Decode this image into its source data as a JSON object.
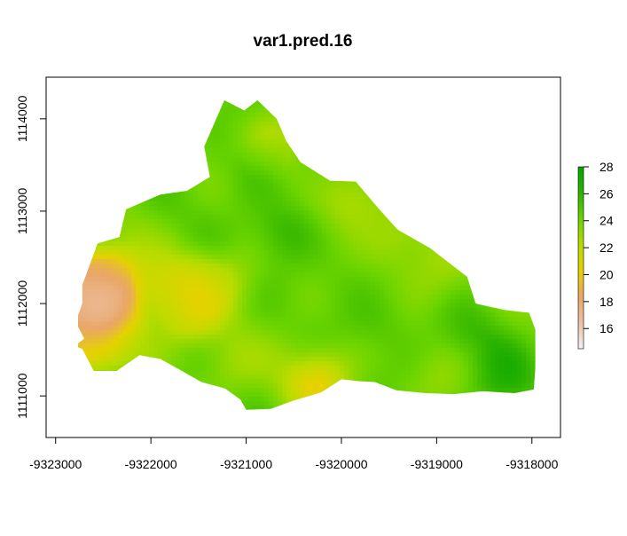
{
  "chart_data": {
    "type": "heatmap",
    "title": "var1.pred.16",
    "xlabel": "",
    "ylabel": "",
    "x_ticks": [
      -9323000,
      -9322000,
      -9321000,
      -9320000,
      -9319000,
      -9318000
    ],
    "y_ticks": [
      1111000,
      1112000,
      1113000,
      1114000
    ],
    "x_tick_labels": [
      "-9323000",
      "-9322000",
      "-9321000",
      "-9320000",
      "-9319000",
      "-9318000"
    ],
    "y_tick_labels": [
      "1111000",
      "1112000",
      "1113000",
      "1114000"
    ],
    "xlim": [
      -9323100,
      -9317700
    ],
    "ylim": [
      1110550,
      1114450
    ],
    "legend": {
      "placement": "right",
      "range": [
        14.5,
        28
      ],
      "ticks": [
        16,
        18,
        20,
        22,
        24,
        26,
        28
      ],
      "tick_labels": [
        "16",
        "18",
        "20",
        "22",
        "24",
        "26",
        "28"
      ],
      "colors": [
        "#f2f2f2",
        "#ecc1a6",
        "#e9a666",
        "#e5d200",
        "#b8dc00",
        "#6ad400",
        "#2db300",
        "#00a600"
      ]
    },
    "region_outline": [
      [
        -9322800,
        1111540
      ],
      [
        -9322700,
        1111620
      ],
      [
        -9322790,
        1111800
      ],
      [
        -9322720,
        1112000
      ],
      [
        -9322720,
        1112200
      ],
      [
        -9322560,
        1112650
      ],
      [
        -9322330,
        1112720
      ],
      [
        -9322260,
        1113020
      ],
      [
        -9321900,
        1113180
      ],
      [
        -9321620,
        1113220
      ],
      [
        -9321380,
        1113370
      ],
      [
        -9321440,
        1113700
      ],
      [
        -9321230,
        1114200
      ],
      [
        -9321020,
        1114090
      ],
      [
        -9320880,
        1114200
      ],
      [
        -9320680,
        1114000
      ],
      [
        -9320580,
        1113760
      ],
      [
        -9320430,
        1113530
      ],
      [
        -9320120,
        1113330
      ],
      [
        -9319850,
        1113320
      ],
      [
        -9319620,
        1113040
      ],
      [
        -9319410,
        1112800
      ],
      [
        -9319070,
        1112600
      ],
      [
        -9318680,
        1112290
      ],
      [
        -9318590,
        1112000
      ],
      [
        -9318290,
        1111930
      ],
      [
        -9318030,
        1111900
      ],
      [
        -9317940,
        1111650
      ],
      [
        -9317980,
        1111070
      ],
      [
        -9318180,
        1111030
      ],
      [
        -9318520,
        1111050
      ],
      [
        -9318820,
        1111020
      ],
      [
        -9319110,
        1111030
      ],
      [
        -9319420,
        1111060
      ],
      [
        -9319650,
        1111150
      ],
      [
        -9319820,
        1111160
      ],
      [
        -9320000,
        1111180
      ],
      [
        -9320210,
        1111040
      ],
      [
        -9320530,
        1110940
      ],
      [
        -9320740,
        1110860
      ],
      [
        -9321000,
        1110850
      ],
      [
        -9321060,
        1110960
      ],
      [
        -9321220,
        1111080
      ],
      [
        -9321470,
        1111150
      ],
      [
        -9321690,
        1111280
      ],
      [
        -9321900,
        1111400
      ],
      [
        -9322120,
        1111440
      ],
      [
        -9322360,
        1111270
      ],
      [
        -9322600,
        1111270
      ],
      [
        -9322720,
        1111510
      ]
    ],
    "field_anchors": [
      {
        "x": -9322550,
        "y": 1112000,
        "value": 17.5
      },
      {
        "x": -9322550,
        "y": 1111850,
        "value": 18
      },
      {
        "x": -9322500,
        "y": 1112300,
        "value": 19
      },
      {
        "x": -9322700,
        "y": 1111550,
        "value": 21.5
      },
      {
        "x": -9321700,
        "y": 1112200,
        "value": 21
      },
      {
        "x": -9321600,
        "y": 1111900,
        "value": 21.5
      },
      {
        "x": -9321200,
        "y": 1112250,
        "value": 22.5
      },
      {
        "x": -9320250,
        "y": 1111150,
        "value": 20.5
      },
      {
        "x": -9320700,
        "y": 1113700,
        "value": 21.5
      },
      {
        "x": -9320900,
        "y": 1113500,
        "value": 25.8
      },
      {
        "x": -9320600,
        "y": 1112800,
        "value": 26
      },
      {
        "x": -9319900,
        "y": 1113100,
        "value": 22
      },
      {
        "x": -9319400,
        "y": 1112650,
        "value": 22.5
      },
      {
        "x": -9319000,
        "y": 1112300,
        "value": 23
      },
      {
        "x": -9320000,
        "y": 1112300,
        "value": 24.8
      },
      {
        "x": -9319600,
        "y": 1111800,
        "value": 25.2
      },
      {
        "x": -9318600,
        "y": 1111600,
        "value": 25.4
      },
      {
        "x": -9318300,
        "y": 1111200,
        "value": 26.2
      },
      {
        "x": -9318900,
        "y": 1111200,
        "value": 23.5
      },
      {
        "x": -9322000,
        "y": 1112700,
        "value": 23.8
      },
      {
        "x": -9321200,
        "y": 1111300,
        "value": 23
      },
      {
        "x": -9320500,
        "y": 1111600,
        "value": 24
      },
      {
        "x": -9321700,
        "y": 1112800,
        "value": 24.5
      },
      {
        "x": -9322100,
        "y": 1111500,
        "value": 23.5
      }
    ],
    "field_base": 24.2
  }
}
